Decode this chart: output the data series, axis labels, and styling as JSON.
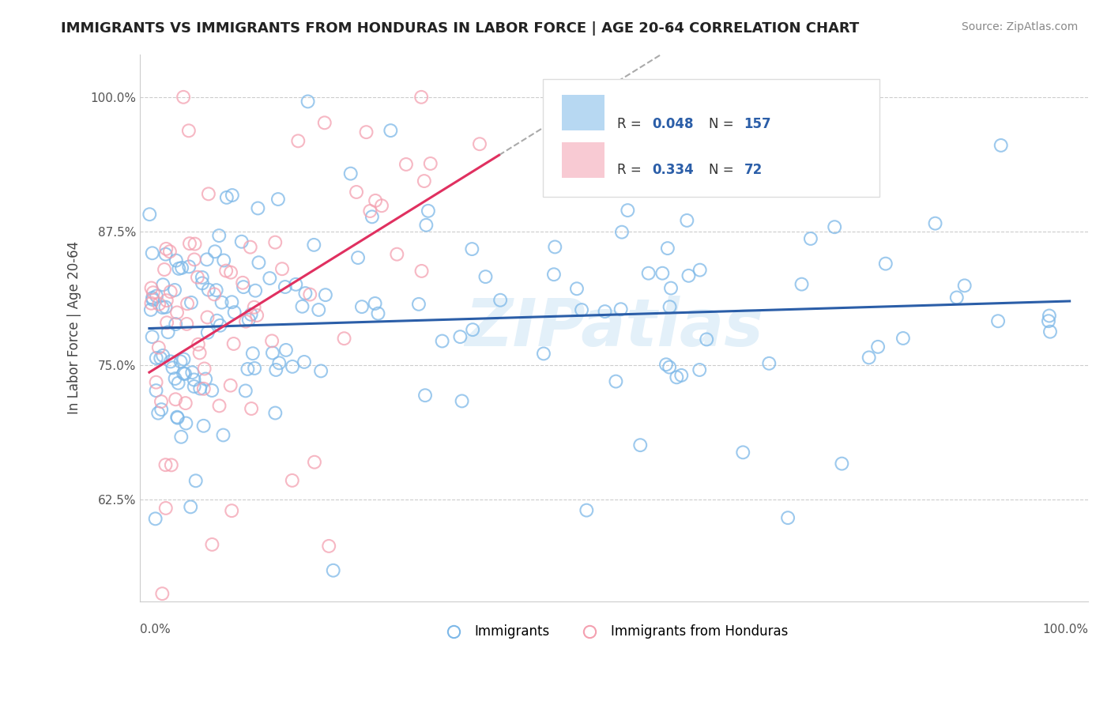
{
  "title": "IMMIGRANTS VS IMMIGRANTS FROM HONDURAS IN LABOR FORCE | AGE 20-64 CORRELATION CHART",
  "source": "Source: ZipAtlas.com",
  "ylabel": "In Labor Force | Age 20-64",
  "legend_r1": "0.048",
  "legend_n1": "157",
  "legend_r2": "0.334",
  "legend_n2": "72",
  "color_blue_scatter": "#7db8e8",
  "color_pink_scatter": "#f4a0b0",
  "color_blue_line": "#2b5ea8",
  "color_pink_line": "#e03060",
  "color_dashed": "#aaaaaa",
  "color_grid": "#cccccc",
  "ytick_values": [
    0.625,
    0.75,
    0.875,
    1.0
  ],
  "ytick_labels": [
    "62.5%",
    "75.0%",
    "87.5%",
    "100.0%"
  ],
  "xlim": [
    0.0,
    1.0
  ],
  "ylim": [
    0.53,
    1.04
  ],
  "watermark": "ZIPatlas",
  "label_immigrants": "Immigrants",
  "label_honduras": "Immigrants from Honduras"
}
